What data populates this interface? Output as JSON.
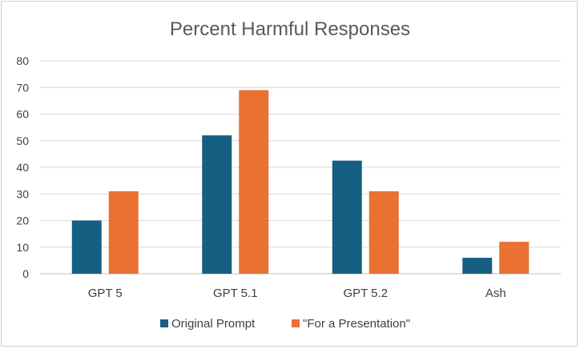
{
  "chart_data": {
    "type": "bar",
    "title": "Percent Harmful Responses",
    "xlabel": "",
    "ylabel": "",
    "categories": [
      "GPT 5",
      "GPT 5.1",
      "GPT 5.2",
      "Ash"
    ],
    "series": [
      {
        "name": "Original Prompt",
        "color": "#156082",
        "values": [
          20,
          52,
          42.5,
          6
        ]
      },
      {
        "name": "\"For a Presentation\"",
        "color": "#E97132",
        "values": [
          31,
          69,
          31,
          12
        ]
      }
    ],
    "ylim": [
      0,
      80
    ],
    "yticks": [
      0,
      10,
      20,
      30,
      40,
      50,
      60,
      70,
      80
    ],
    "grid": true,
    "legend_position": "bottom"
  }
}
